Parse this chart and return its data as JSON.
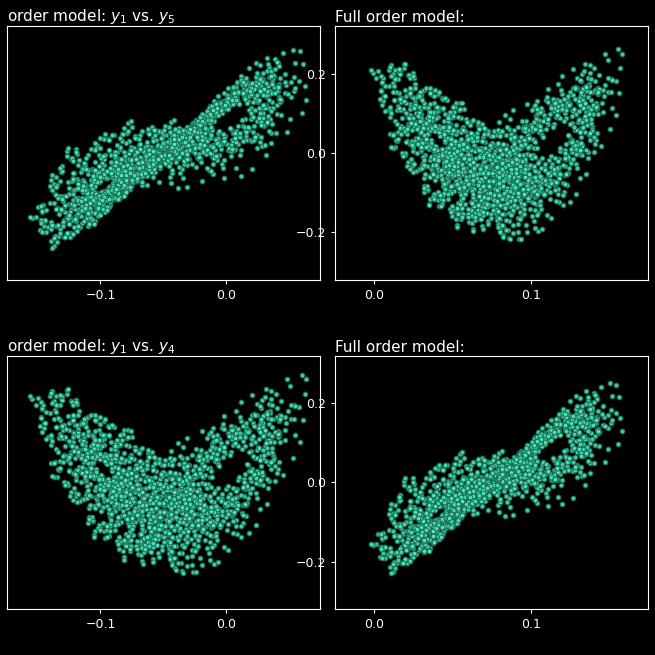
{
  "background_color": "#000000",
  "scatter_color": "#4ef0c0",
  "scatter_edgecolor": "#1a6650",
  "scatter_alpha": 0.85,
  "scatter_size": 12,
  "scatter_linewidth": 0.8,
  "title_color": "white",
  "title_fontsize": 11,
  "tick_color": "white",
  "tick_fontsize": 9,
  "spine_color": "white",
  "titles": [
    "order model: $y_1$ vs. $y_5$",
    "Full order model:",
    "order model: $y_1$ vs. $y_4$",
    "Full order model:"
  ],
  "yticks_right": [
    -0.2,
    0.0,
    0.2
  ],
  "xticks_left": [
    -0.1,
    0.0
  ],
  "xticks_right": [
    0.0,
    0.1
  ]
}
